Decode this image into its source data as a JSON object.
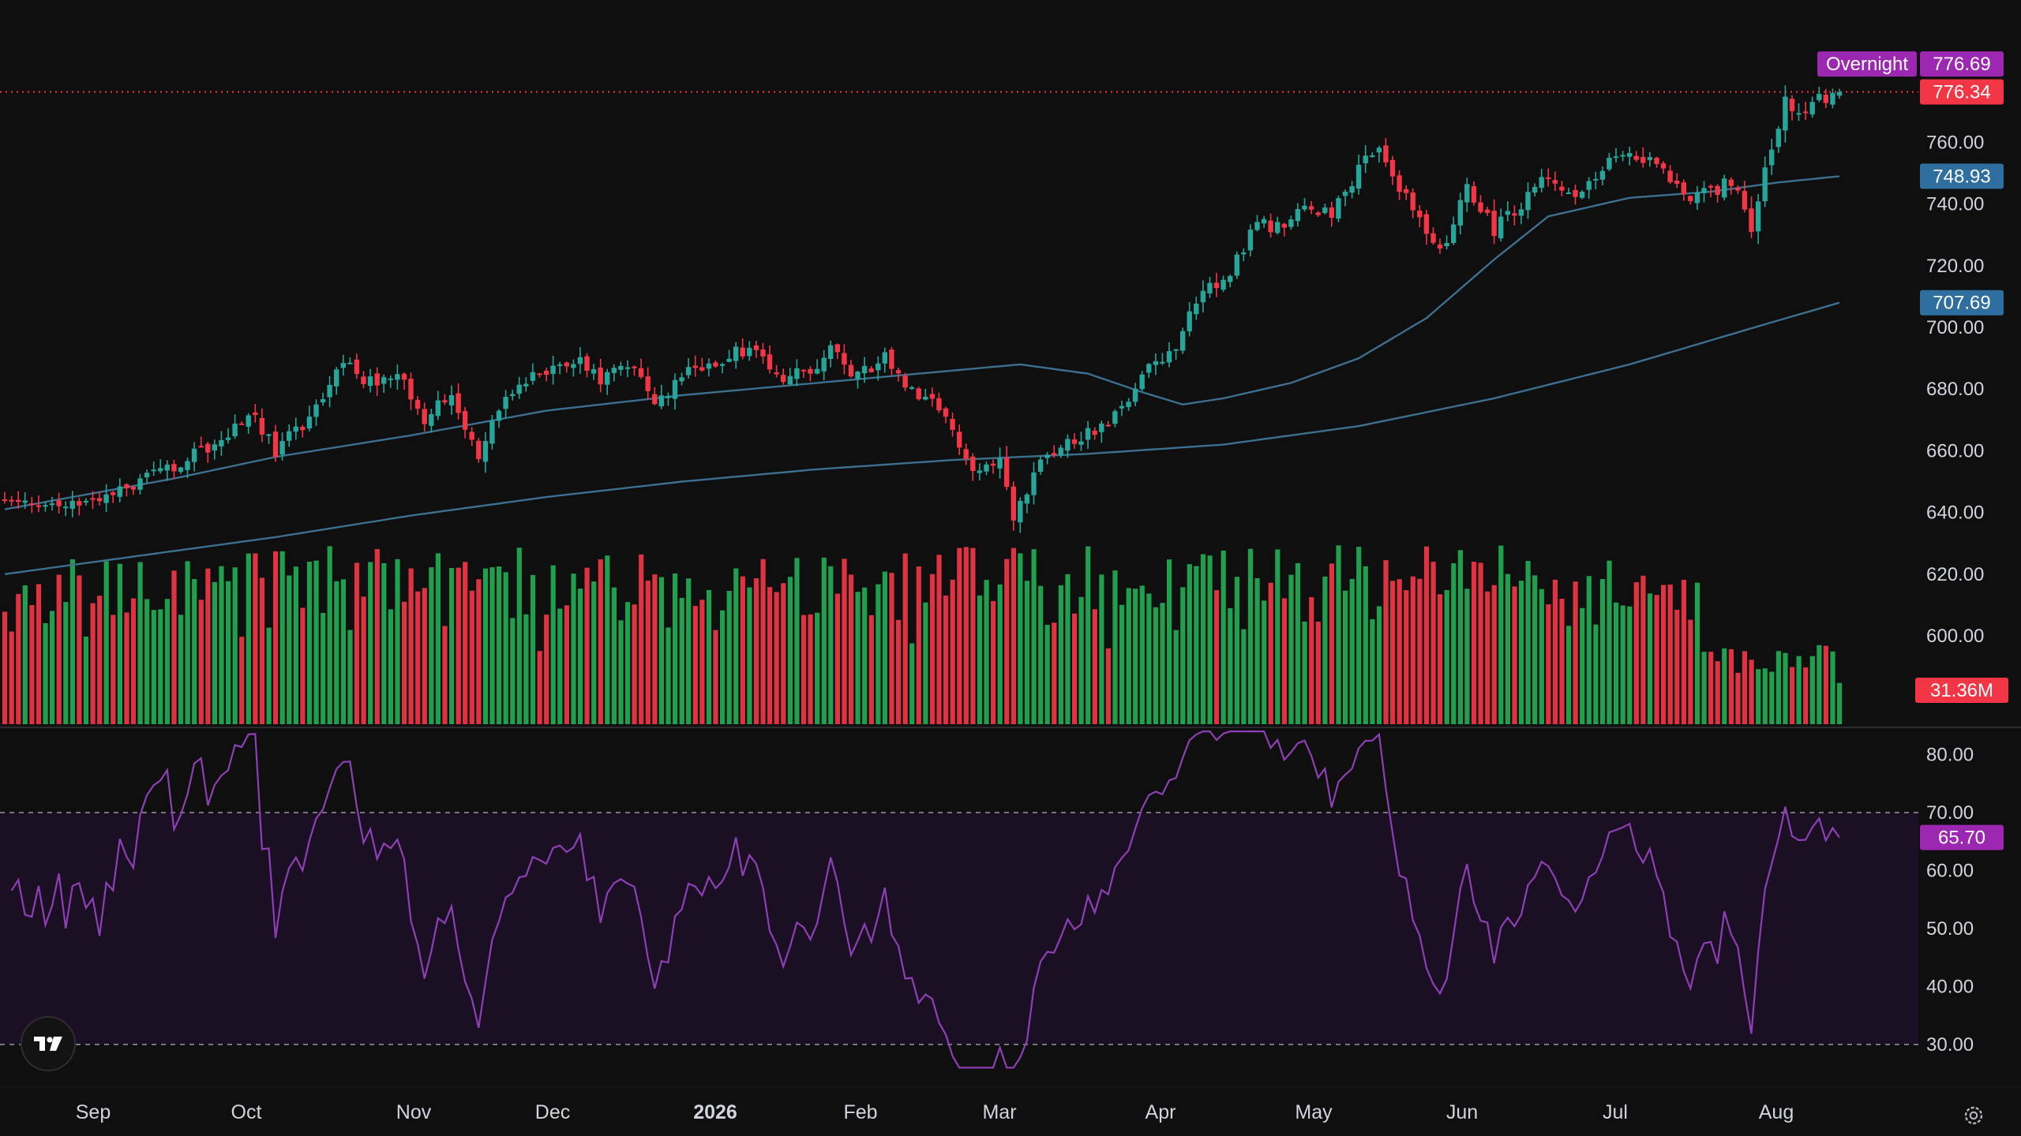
{
  "colors": {
    "background": "#0f0f0f",
    "up": "#26a69a",
    "up_volume": "#22ab55",
    "down": "#f23645",
    "ma_line": "#3d6f8e",
    "ma_label": "#2f6f9f",
    "rsi_line": "#8e3fb5",
    "rsi_band": "#1b0f24",
    "overnight": "#9c27b0",
    "axis_text": "#d1d4dc",
    "grid_dash": "#9598a1"
  },
  "header": {
    "overnight_label": "Overnight",
    "overnight_price": "776.69"
  },
  "price_axis": {
    "ticks": [
      "760.00",
      "740.00",
      "720.00",
      "700.00",
      "680.00",
      "660.00",
      "640.00",
      "620.00",
      "600.00"
    ]
  },
  "rsi_axis": {
    "ticks": [
      "80.00",
      "70.00",
      "60.00",
      "50.00",
      "40.00",
      "30.00"
    ]
  },
  "time_axis": {
    "labels": [
      "Sep",
      "Oct",
      "Nov",
      "Dec",
      "2026",
      "Feb",
      "Mar",
      "Apr",
      "May",
      "Jun",
      "Jul",
      "Aug"
    ]
  },
  "badges": {
    "last_price": "776.34",
    "ma_short": "748.93",
    "ma_long": "707.69",
    "volume": "31.36M",
    "rsi": "65.70"
  },
  "icons": {
    "logo": "tradingview-logo-icon",
    "settings": "gear-icon"
  },
  "chart_data": [
    {
      "type": "candlestick",
      "title": "",
      "y_range": [
        584,
        790
      ],
      "last_price": 776.34,
      "overnight_price": 776.69,
      "x_labels": [
        "Sep",
        "Oct",
        "Nov",
        "Dec",
        "2026",
        "Feb",
        "Mar",
        "Apr",
        "May",
        "Jun",
        "Jul",
        "Aug"
      ],
      "close_path": [
        [
          0,
          644
        ],
        [
          8,
          640
        ],
        [
          14,
          644
        ],
        [
          20,
          650
        ],
        [
          26,
          656
        ],
        [
          32,
          664
        ],
        [
          36,
          673
        ],
        [
          40,
          660
        ],
        [
          44,
          669
        ],
        [
          50,
          688
        ],
        [
          54,
          682
        ],
        [
          58,
          686
        ],
        [
          62,
          671
        ],
        [
          66,
          678
        ],
        [
          70,
          659
        ],
        [
          72,
          668
        ],
        [
          76,
          682
        ],
        [
          80,
          686
        ],
        [
          84,
          690
        ],
        [
          88,
          682
        ],
        [
          92,
          688
        ],
        [
          96,
          676
        ],
        [
          100,
          684
        ],
        [
          104,
          688
        ],
        [
          108,
          693
        ],
        [
          112,
          692
        ],
        [
          114,
          683
        ],
        [
          118,
          685
        ],
        [
          122,
          693
        ],
        [
          126,
          684
        ],
        [
          130,
          690
        ],
        [
          133,
          679
        ],
        [
          137,
          676
        ],
        [
          141,
          662
        ],
        [
          144,
          652
        ],
        [
          147,
          658
        ],
        [
          149,
          637
        ],
        [
          153,
          657
        ],
        [
          157,
          664
        ],
        [
          161,
          666
        ],
        [
          165,
          674
        ],
        [
          169,
          688
        ],
        [
          173,
          693
        ],
        [
          177,
          713
        ],
        [
          181,
          717
        ],
        [
          185,
          734
        ],
        [
          189,
          732
        ],
        [
          193,
          740
        ],
        [
          196,
          736
        ],
        [
          200,
          752
        ],
        [
          203,
          760
        ],
        [
          206,
          746
        ],
        [
          208,
          738
        ],
        [
          212,
          725
        ],
        [
          216,
          744
        ],
        [
          220,
          732
        ],
        [
          224,
          739
        ],
        [
          228,
          750
        ],
        [
          232,
          743
        ],
        [
          236,
          752
        ],
        [
          240,
          757
        ],
        [
          244,
          754
        ],
        [
          246,
          745
        ],
        [
          250,
          742
        ],
        [
          254,
          746
        ],
        [
          256,
          742
        ],
        [
          258,
          732
        ],
        [
          261,
          760
        ],
        [
          263,
          773
        ],
        [
          265,
          771
        ],
        [
          268,
          774
        ],
        [
          271,
          776
        ]
      ],
      "sma_short": [
        [
          0,
          641
        ],
        [
          10,
          645
        ],
        [
          25,
          651
        ],
        [
          40,
          658
        ],
        [
          60,
          665
        ],
        [
          80,
          673
        ],
        [
          100,
          678
        ],
        [
          120,
          682
        ],
        [
          140,
          686
        ],
        [
          150,
          688
        ],
        [
          160,
          685
        ],
        [
          168,
          679
        ],
        [
          174,
          675
        ],
        [
          180,
          677
        ],
        [
          190,
          682
        ],
        [
          200,
          690
        ],
        [
          210,
          703
        ],
        [
          220,
          722
        ],
        [
          228,
          736
        ],
        [
          240,
          742
        ],
        [
          252,
          744
        ],
        [
          262,
          747
        ],
        [
          271,
          749
        ]
      ],
      "sma_long": [
        [
          0,
          620
        ],
        [
          20,
          626
        ],
        [
          40,
          632
        ],
        [
          60,
          639
        ],
        [
          80,
          645
        ],
        [
          100,
          650
        ],
        [
          120,
          654
        ],
        [
          140,
          657
        ],
        [
          160,
          659
        ],
        [
          180,
          662
        ],
        [
          200,
          668
        ],
        [
          220,
          677
        ],
        [
          240,
          688
        ],
        [
          260,
          701
        ],
        [
          271,
          708
        ]
      ]
    },
    {
      "type": "bar",
      "series": "volume",
      "last_value": "31.36M"
    },
    {
      "type": "line",
      "series": "RSI",
      "y_range": [
        26,
        86
      ],
      "bands": [
        30,
        70
      ],
      "last_value": 65.7
    }
  ]
}
